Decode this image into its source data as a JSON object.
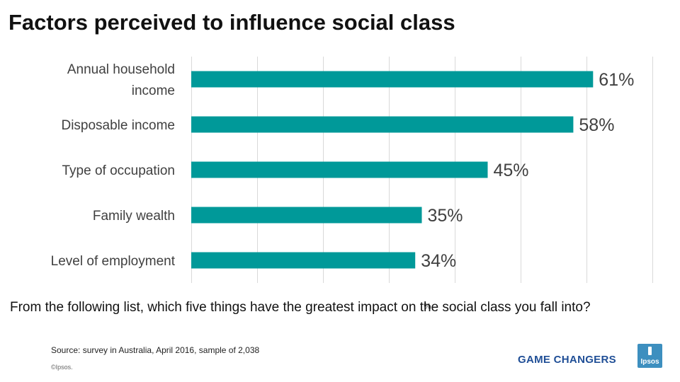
{
  "title": "Factors perceived to influence social class",
  "question": "From the following list, which five things have the greatest impact on the social class you fall into?",
  "source": "Source: survey in Australia, April 2016, sample of 2,038",
  "copyright": "©Ipsos.",
  "tagline": "GAME CHANGERS",
  "logo_text": "Ipsos",
  "colors": {
    "bar": "#009999",
    "text": "#404040",
    "grid": "#d9d9d9",
    "tagline": "#1f4e96",
    "logo": "#3d8fbf"
  },
  "chart_data": {
    "type": "bar",
    "orientation": "horizontal",
    "categories": [
      [
        "Annual household",
        "income"
      ],
      [
        "Disposable income"
      ],
      [
        "Type of occupation"
      ],
      [
        "Family wealth"
      ],
      [
        "Level of employment"
      ]
    ],
    "values": [
      61,
      58,
      45,
      35,
      34
    ],
    "data_labels": [
      "61%",
      "58%",
      "45%",
      "35%",
      "34%"
    ],
    "xlabel": "%",
    "xlim": [
      0,
      70
    ],
    "xtick_step": 10,
    "grid": true,
    "legend": "none"
  }
}
